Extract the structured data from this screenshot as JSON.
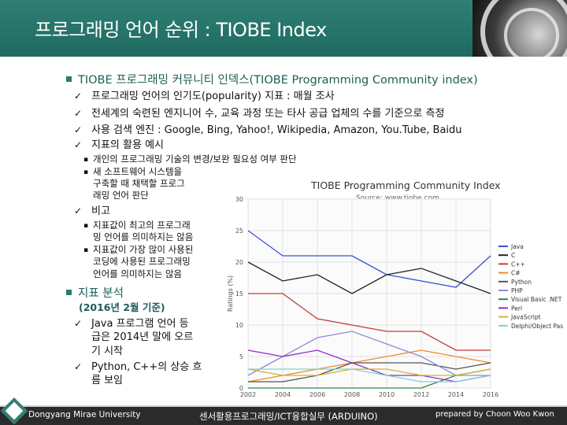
{
  "header": {
    "title": "프로그래밍 언어 순위 : TIOBE Index"
  },
  "content": {
    "section1": "TIOBE 프로그래밍 커뮤니티 인덱스(TIOBE Programming Community index)",
    "check_mark": "✓",
    "items": [
      "프로그래밍 언어의 인기도(popularity) 지표 : 매월 조사",
      "전세계의 숙련된 엔지니어 수, 교육 과정 또는 타사 공급 업체의 수를 기준으로 측정",
      "사용 검색 엔진 : Google, Bing, Yahoo!, Wikipedia, Amazon, You.Tube, Baidu",
      "지표의 활용 예시"
    ],
    "usage_subitems": [
      "개인의 프로그래밍 기술의 변경/보완 필요성 여부 판단",
      "새 소프트웨어 시스템을",
      "구축할 때 채택할 프로그",
      "래밍 언어 판단"
    ],
    "compare_label": "비고",
    "compare_subitems": [
      "지표값이 최고의 프로그래",
      "밍 언어를 의미하지는 않음",
      "지표값이 가장 많이 사용된",
      "코딩에 사용된 프로그래밍",
      "언어를 의미하지는 않음"
    ],
    "section2": "지표 분석",
    "section2_note": "(2016년 2월 기준)",
    "analysis": [
      "Java 프로그램 언어 등",
      "급은 2014년 말에 오르",
      "기 시작",
      "Python, C++의 상승 흐",
      "름 보임"
    ]
  },
  "chart_data": {
    "type": "line",
    "title": "TIOBE Programming Community Index",
    "source": "Source: www.tiobe.com",
    "ylabel": "Ratings (%)",
    "ylim": [
      0,
      30
    ],
    "yticks": [
      "0",
      "5",
      "10",
      "15",
      "20",
      "25",
      "30"
    ],
    "x": [
      2002,
      2004,
      2006,
      2008,
      2010,
      2012,
      2014,
      2016
    ],
    "xticks": [
      "2002",
      "2004",
      "2006",
      "2008",
      "2010",
      "2012",
      "2014",
      "2016"
    ],
    "series": [
      {
        "name": "Java",
        "color": "#3b4fd1",
        "values": [
          25,
          21,
          21,
          21,
          18,
          17,
          16,
          21
        ]
      },
      {
        "name": "C",
        "color": "#222222",
        "values": [
          20,
          17,
          18,
          15,
          18,
          19,
          17,
          15
        ]
      },
      {
        "name": "C++",
        "color": "#c23a3a",
        "values": [
          15,
          15,
          11,
          10,
          9,
          9,
          6,
          6
        ]
      },
      {
        "name": "C#",
        "color": "#f08a24",
        "values": [
          1,
          2,
          3,
          4,
          5,
          6,
          5,
          4
        ]
      },
      {
        "name": "Python",
        "color": "#555555",
        "values": [
          1,
          1,
          2,
          4,
          4,
          4,
          3,
          4
        ]
      },
      {
        "name": "PHP",
        "color": "#8b8bd6",
        "values": [
          2,
          5,
          8,
          9,
          7,
          5,
          2,
          2
        ]
      },
      {
        "name": "Visual Basic .NET",
        "color": "#2b8a4a",
        "values": [
          0,
          0,
          0,
          0,
          0,
          0,
          2,
          3
        ]
      },
      {
        "name": "Perl",
        "color": "#8e2bd1",
        "values": [
          6,
          5,
          6,
          4,
          2,
          2,
          1,
          2
        ]
      },
      {
        "name": "JavaScript",
        "color": "#d1b32b",
        "values": [
          3,
          2,
          2,
          3,
          3,
          2,
          2,
          3
        ]
      },
      {
        "name": "Delphi/Object Pas",
        "color": "#7fd1d1",
        "values": [
          3,
          3,
          3,
          3,
          2,
          1,
          1,
          2
        ]
      }
    ]
  },
  "footer": {
    "left": "Dongyang Mirae University",
    "center": "센서활용프로그래밍/ICT융합실무 (ARDUINO)",
    "right": "prepared by Choon Woo Kwon"
  }
}
